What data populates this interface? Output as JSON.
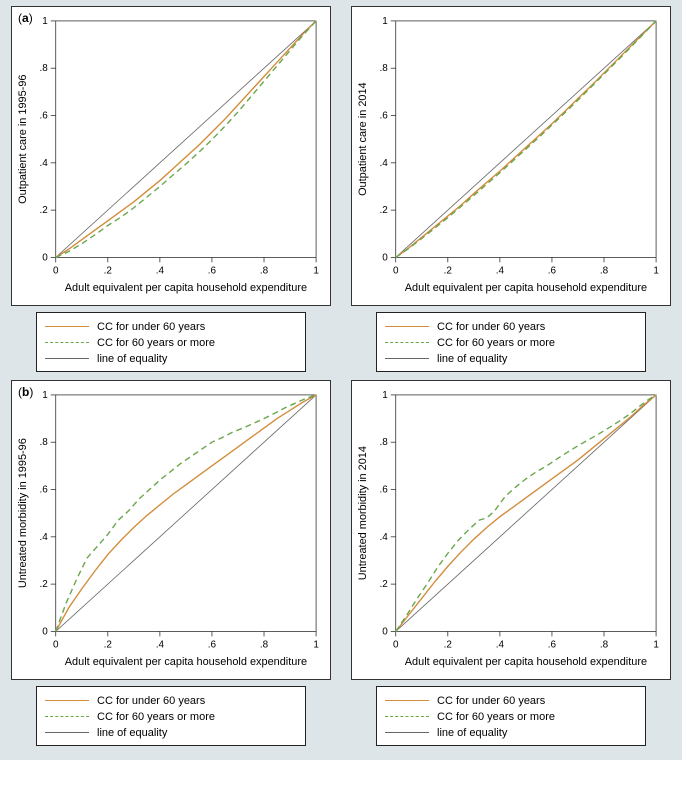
{
  "colors": {
    "background": "#dde5e8",
    "panel_bg": "#ffffff",
    "frame": "#333333",
    "text": "#000000",
    "equality": "#666666",
    "under60": "#d38c3b",
    "over60": "#6aa64a"
  },
  "typography": {
    "axis_label_fontsize": 11,
    "tick_fontsize": 10,
    "legend_fontsize": 11,
    "panel_label_fontsize": 12
  },
  "shared": {
    "xlabel": "Adult equivalent per capita household expenditure",
    "xlim": [
      0,
      1
    ],
    "ylim": [
      0,
      1
    ],
    "xticks": [
      0,
      0.2,
      0.4,
      0.6,
      0.8,
      1
    ],
    "yticks": [
      0,
      0.2,
      0.4,
      0.6,
      0.8,
      1
    ],
    "xtick_labels": [
      "0",
      ".2",
      ".4",
      ".6",
      ".8",
      "1"
    ],
    "ytick_labels": [
      "0",
      ".2",
      ".4",
      ".6",
      ".8",
      "1"
    ],
    "legend": {
      "under60": "CC for under 60 years",
      "over60": "CC for 60 years or more",
      "equality": "line of equality"
    },
    "line_width_data": 1.4,
    "line_width_equality": 0.8,
    "dash_pattern_over60": "6,4"
  },
  "panel_labels": {
    "a": "(a)",
    "b": "(b)"
  },
  "panels": {
    "a_left": {
      "ylabel": "Outpatient care in 1995-96",
      "equality": [
        [
          0,
          0
        ],
        [
          1,
          1
        ]
      ],
      "under60": [
        [
          0.0,
          0.0
        ],
        [
          0.05,
          0.035
        ],
        [
          0.1,
          0.075
        ],
        [
          0.15,
          0.115
        ],
        [
          0.2,
          0.155
        ],
        [
          0.25,
          0.195
        ],
        [
          0.3,
          0.235
        ],
        [
          0.35,
          0.28
        ],
        [
          0.4,
          0.325
        ],
        [
          0.45,
          0.375
        ],
        [
          0.5,
          0.425
        ],
        [
          0.55,
          0.475
        ],
        [
          0.6,
          0.53
        ],
        [
          0.65,
          0.585
        ],
        [
          0.7,
          0.645
        ],
        [
          0.75,
          0.705
        ],
        [
          0.8,
          0.765
        ],
        [
          0.85,
          0.825
        ],
        [
          0.9,
          0.885
        ],
        [
          0.95,
          0.945
        ],
        [
          1.0,
          1.0
        ]
      ],
      "over60": [
        [
          0.0,
          0.0
        ],
        [
          0.05,
          0.025
        ],
        [
          0.1,
          0.058
        ],
        [
          0.15,
          0.095
        ],
        [
          0.2,
          0.135
        ],
        [
          0.25,
          0.17
        ],
        [
          0.3,
          0.21
        ],
        [
          0.35,
          0.255
        ],
        [
          0.4,
          0.3
        ],
        [
          0.45,
          0.348
        ],
        [
          0.5,
          0.395
        ],
        [
          0.55,
          0.445
        ],
        [
          0.6,
          0.498
        ],
        [
          0.65,
          0.555
        ],
        [
          0.7,
          0.615
        ],
        [
          0.75,
          0.68
        ],
        [
          0.8,
          0.745
        ],
        [
          0.85,
          0.81
        ],
        [
          0.9,
          0.875
        ],
        [
          0.95,
          0.94
        ],
        [
          1.0,
          1.0
        ]
      ]
    },
    "a_right": {
      "ylabel": "Outpatient care in 2014",
      "equality": [
        [
          0,
          0
        ],
        [
          1,
          1
        ]
      ],
      "under60": [
        [
          0.0,
          0.0
        ],
        [
          0.05,
          0.04
        ],
        [
          0.1,
          0.085
        ],
        [
          0.15,
          0.13
        ],
        [
          0.2,
          0.175
        ],
        [
          0.25,
          0.22
        ],
        [
          0.3,
          0.27
        ],
        [
          0.35,
          0.318
        ],
        [
          0.4,
          0.365
        ],
        [
          0.45,
          0.415
        ],
        [
          0.5,
          0.465
        ],
        [
          0.55,
          0.515
        ],
        [
          0.6,
          0.565
        ],
        [
          0.65,
          0.618
        ],
        [
          0.7,
          0.672
        ],
        [
          0.75,
          0.725
        ],
        [
          0.8,
          0.78
        ],
        [
          0.85,
          0.835
        ],
        [
          0.9,
          0.89
        ],
        [
          0.95,
          0.945
        ],
        [
          1.0,
          1.0
        ]
      ],
      "over60": [
        [
          0.0,
          0.0
        ],
        [
          0.05,
          0.038
        ],
        [
          0.1,
          0.08
        ],
        [
          0.15,
          0.124
        ],
        [
          0.2,
          0.168
        ],
        [
          0.25,
          0.215
        ],
        [
          0.3,
          0.262
        ],
        [
          0.35,
          0.31
        ],
        [
          0.4,
          0.358
        ],
        [
          0.45,
          0.408
        ],
        [
          0.5,
          0.458
        ],
        [
          0.55,
          0.508
        ],
        [
          0.6,
          0.56
        ],
        [
          0.65,
          0.612
        ],
        [
          0.7,
          0.665
        ],
        [
          0.75,
          0.72
        ],
        [
          0.8,
          0.775
        ],
        [
          0.85,
          0.83
        ],
        [
          0.9,
          0.886
        ],
        [
          0.95,
          0.943
        ],
        [
          1.0,
          1.0
        ]
      ]
    },
    "b_left": {
      "ylabel": "Untreated morbidity in 1995-96",
      "equality": [
        [
          0,
          0
        ],
        [
          1,
          1
        ]
      ],
      "under60": [
        [
          0.0,
          0.0
        ],
        [
          0.05,
          0.1
        ],
        [
          0.1,
          0.18
        ],
        [
          0.15,
          0.255
        ],
        [
          0.2,
          0.325
        ],
        [
          0.25,
          0.385
        ],
        [
          0.3,
          0.44
        ],
        [
          0.35,
          0.49
        ],
        [
          0.4,
          0.535
        ],
        [
          0.45,
          0.58
        ],
        [
          0.5,
          0.62
        ],
        [
          0.55,
          0.66
        ],
        [
          0.6,
          0.7
        ],
        [
          0.65,
          0.74
        ],
        [
          0.7,
          0.78
        ],
        [
          0.75,
          0.82
        ],
        [
          0.8,
          0.86
        ],
        [
          0.85,
          0.9
        ],
        [
          0.9,
          0.935
        ],
        [
          0.95,
          0.97
        ],
        [
          1.0,
          1.0
        ]
      ],
      "over60": [
        [
          0.0,
          0.0
        ],
        [
          0.04,
          0.12
        ],
        [
          0.08,
          0.22
        ],
        [
          0.12,
          0.31
        ],
        [
          0.16,
          0.36
        ],
        [
          0.2,
          0.41
        ],
        [
          0.24,
          0.47
        ],
        [
          0.28,
          0.51
        ],
        [
          0.32,
          0.56
        ],
        [
          0.36,
          0.6
        ],
        [
          0.4,
          0.64
        ],
        [
          0.44,
          0.675
        ],
        [
          0.48,
          0.71
        ],
        [
          0.52,
          0.74
        ],
        [
          0.56,
          0.77
        ],
        [
          0.6,
          0.8
        ],
        [
          0.64,
          0.82
        ],
        [
          0.68,
          0.843
        ],
        [
          0.72,
          0.86
        ],
        [
          0.76,
          0.88
        ],
        [
          0.8,
          0.9
        ],
        [
          0.84,
          0.922
        ],
        [
          0.88,
          0.945
        ],
        [
          0.92,
          0.965
        ],
        [
          0.96,
          0.985
        ],
        [
          1.0,
          1.0
        ]
      ]
    },
    "b_right": {
      "ylabel": "Untreated morbidity in 2014",
      "equality": [
        [
          0,
          0
        ],
        [
          1,
          1
        ]
      ],
      "under60": [
        [
          0.0,
          0.0
        ],
        [
          0.05,
          0.07
        ],
        [
          0.1,
          0.14
        ],
        [
          0.15,
          0.21
        ],
        [
          0.2,
          0.275
        ],
        [
          0.25,
          0.335
        ],
        [
          0.3,
          0.39
        ],
        [
          0.35,
          0.44
        ],
        [
          0.4,
          0.485
        ],
        [
          0.45,
          0.525
        ],
        [
          0.5,
          0.565
        ],
        [
          0.55,
          0.605
        ],
        [
          0.6,
          0.645
        ],
        [
          0.65,
          0.685
        ],
        [
          0.7,
          0.725
        ],
        [
          0.75,
          0.77
        ],
        [
          0.8,
          0.815
        ],
        [
          0.85,
          0.86
        ],
        [
          0.9,
          0.905
        ],
        [
          0.95,
          0.955
        ],
        [
          1.0,
          1.0
        ]
      ],
      "over60": [
        [
          0.0,
          0.0
        ],
        [
          0.04,
          0.065
        ],
        [
          0.08,
          0.135
        ],
        [
          0.12,
          0.2
        ],
        [
          0.16,
          0.27
        ],
        [
          0.2,
          0.33
        ],
        [
          0.24,
          0.385
        ],
        [
          0.28,
          0.43
        ],
        [
          0.32,
          0.47
        ],
        [
          0.35,
          0.48
        ],
        [
          0.38,
          0.51
        ],
        [
          0.42,
          0.57
        ],
        [
          0.46,
          0.61
        ],
        [
          0.5,
          0.645
        ],
        [
          0.54,
          0.675
        ],
        [
          0.58,
          0.7
        ],
        [
          0.62,
          0.73
        ],
        [
          0.66,
          0.758
        ],
        [
          0.7,
          0.785
        ],
        [
          0.74,
          0.81
        ],
        [
          0.78,
          0.835
        ],
        [
          0.82,
          0.862
        ],
        [
          0.86,
          0.89
        ],
        [
          0.9,
          0.92
        ],
        [
          0.94,
          0.955
        ],
        [
          0.97,
          0.98
        ],
        [
          1.0,
          1.0
        ]
      ]
    }
  }
}
